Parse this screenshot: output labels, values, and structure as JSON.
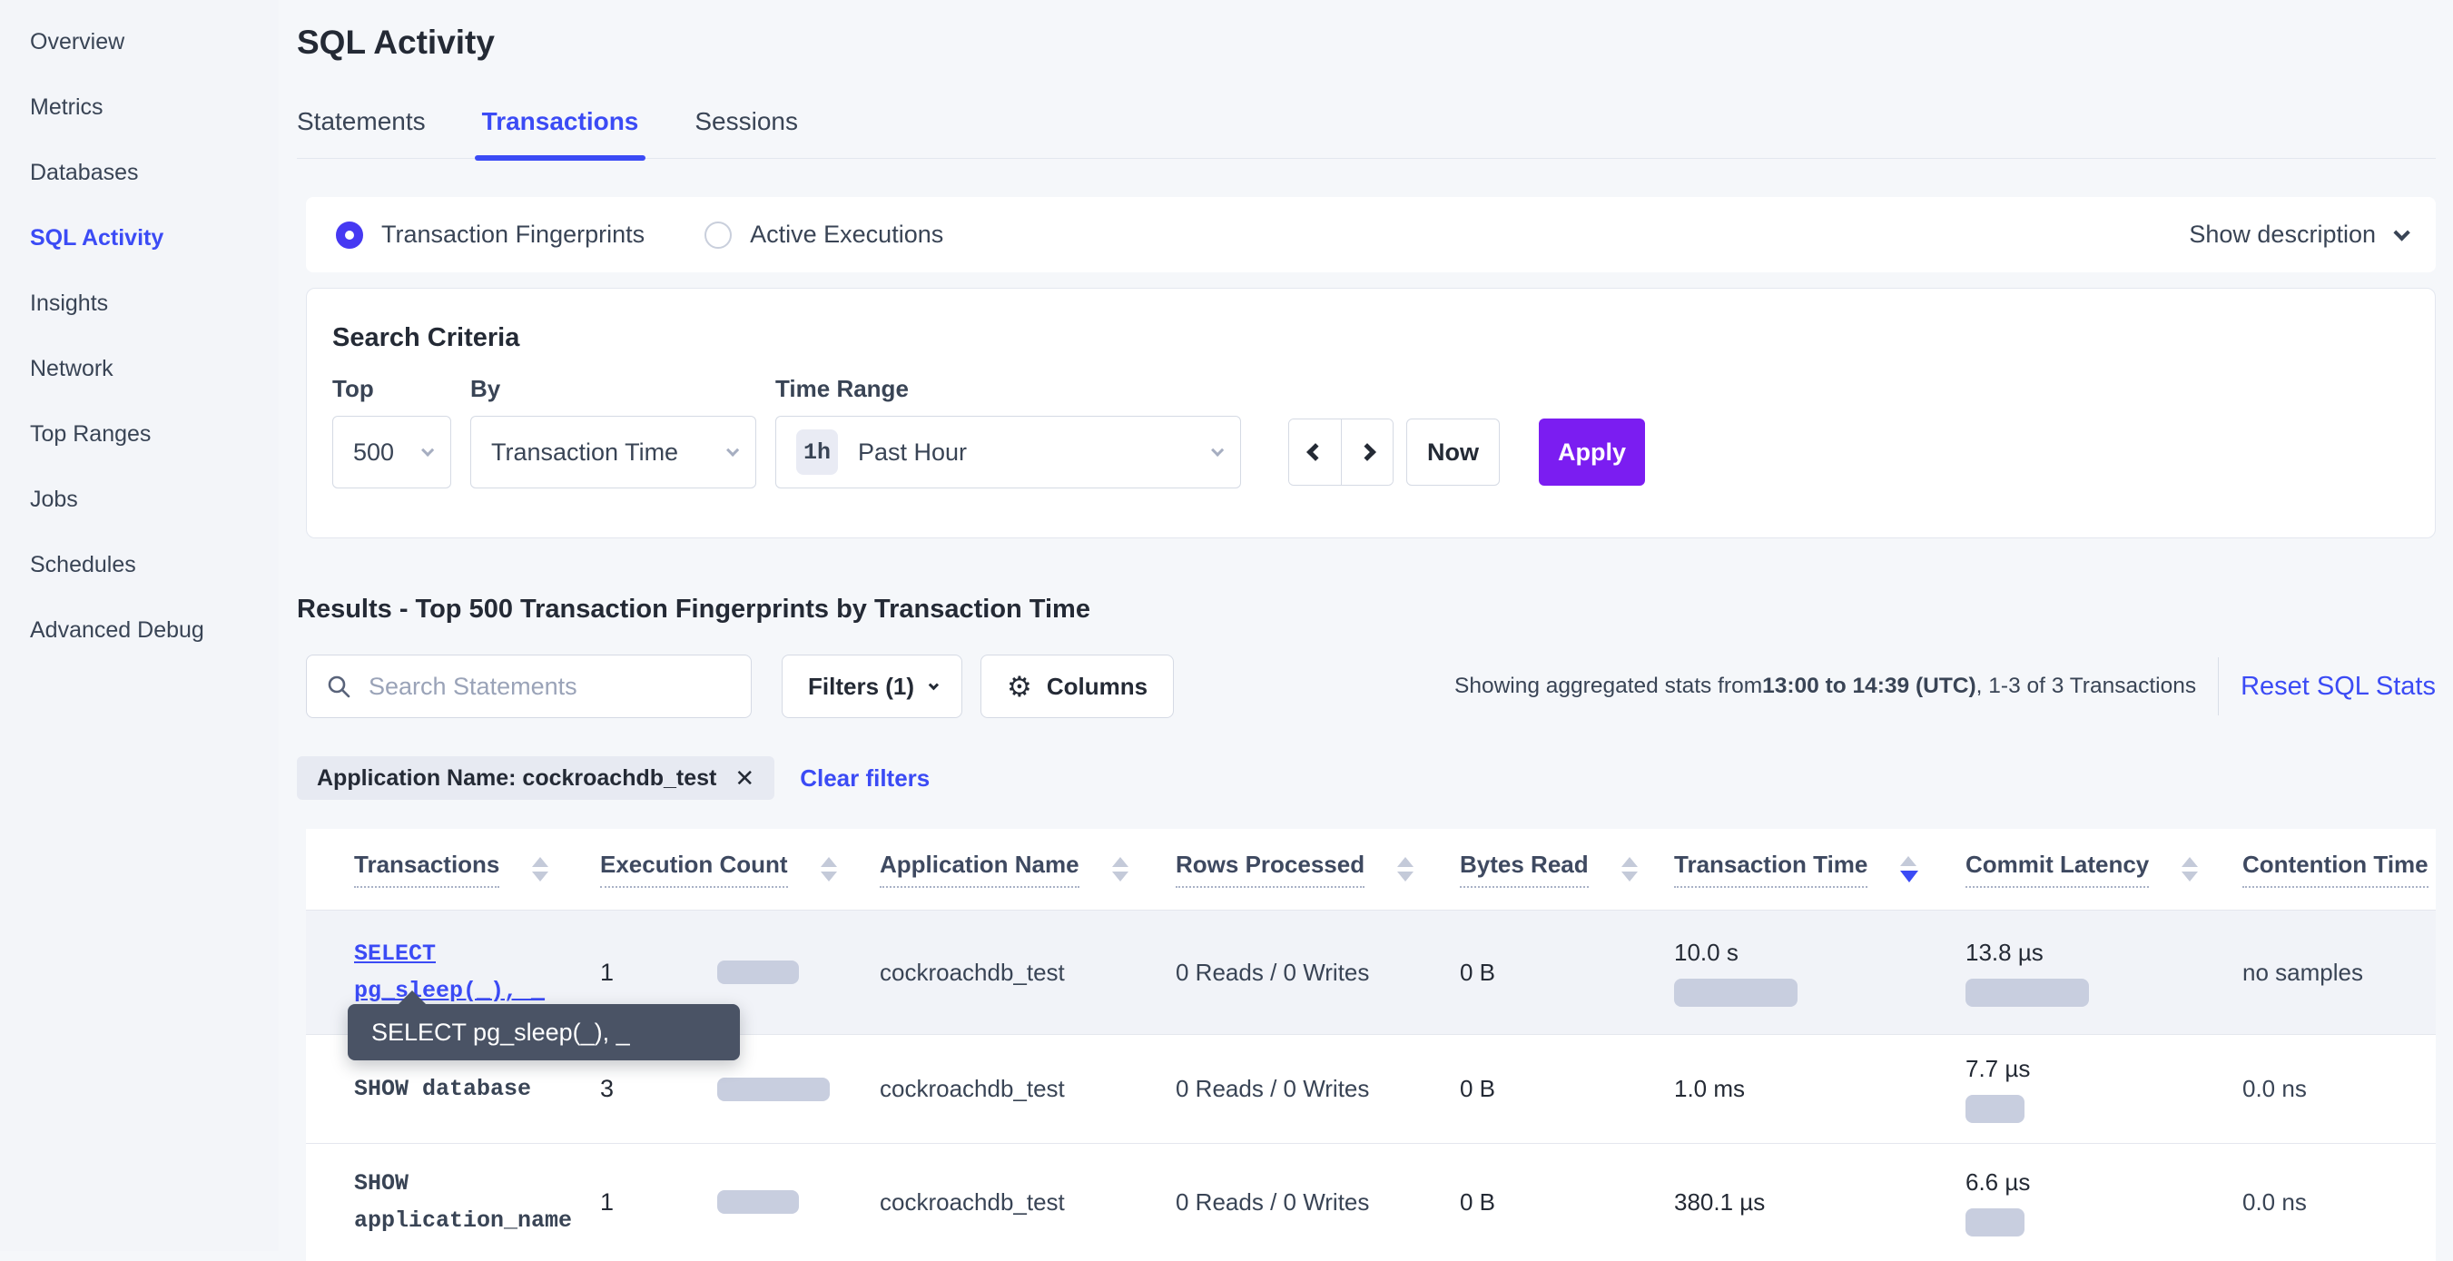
{
  "sidebar": {
    "items": [
      "Overview",
      "Metrics",
      "Databases",
      "SQL Activity",
      "Insights",
      "Network",
      "Top Ranges",
      "Jobs",
      "Schedules",
      "Advanced Debug"
    ],
    "active": "SQL Activity"
  },
  "header": {
    "title": "SQL Activity",
    "tabs": [
      "Statements",
      "Transactions",
      "Sessions"
    ],
    "active_tab": "Transactions"
  },
  "view_toggle": {
    "options": [
      {
        "label": "Transaction Fingerprints",
        "selected": true
      },
      {
        "label": "Active Executions",
        "selected": false
      }
    ],
    "show_description": "Show description"
  },
  "search_criteria": {
    "heading": "Search Criteria",
    "top": {
      "label": "Top",
      "value": "500"
    },
    "by": {
      "label": "By",
      "value": "Transaction Time"
    },
    "time_range": {
      "label": "Time Range",
      "badge": "1h",
      "value": "Past Hour"
    },
    "now_label": "Now",
    "apply_label": "Apply"
  },
  "results": {
    "heading": "Results - Top 500 Transaction Fingerprints by Transaction Time",
    "search_placeholder": "Search Statements",
    "filters_label": "Filters (1)",
    "columns_label": "Columns",
    "stats": {
      "prefix": "Showing aggregated stats from ",
      "bold": "13:00 to 14:39 (UTC)",
      "suffix": ", 1-3 of 3 Transactions"
    },
    "reset_label": "Reset SQL Stats",
    "filter_chip": "Application Name: cockroachdb_test",
    "clear_filters": "Clear filters"
  },
  "table": {
    "columns": [
      {
        "label": "Transactions",
        "sort": "none"
      },
      {
        "label": "Execution Count",
        "sort": "none"
      },
      {
        "label": "Application Name",
        "sort": "none"
      },
      {
        "label": "Rows Processed",
        "sort": "none"
      },
      {
        "label": "Bytes Read",
        "sort": "none"
      },
      {
        "label": "Transaction Time",
        "sort": "desc"
      },
      {
        "label": "Commit Latency",
        "sort": "none"
      },
      {
        "label": "Contention Time",
        "sort": "none"
      }
    ],
    "rows": [
      {
        "transaction": [
          "SELECT",
          "pg_sleep(_), _"
        ],
        "is_link": true,
        "highlighted": true,
        "execution_count": "1",
        "exec_bar": 90,
        "application_name": "cockroachdb_test",
        "rows_processed": "0 Reads / 0 Writes",
        "bytes_read": "0 B",
        "transaction_time": "10.0 s",
        "txn_bar": 136,
        "commit_latency": "13.8 µs",
        "commit_bar": 136,
        "contention_time": "no samples"
      },
      {
        "transaction": [
          "SHOW database"
        ],
        "is_link": false,
        "highlighted": false,
        "execution_count": "3",
        "exec_bar": 124,
        "application_name": "cockroachdb_test",
        "rows_processed": "0 Reads / 0 Writes",
        "bytes_read": "0 B",
        "transaction_time": "1.0 ms",
        "txn_bar": 0,
        "commit_latency": "7.7 µs",
        "commit_bar": 65,
        "contention_time": "0.0 ns"
      },
      {
        "transaction": [
          "SHOW",
          "application_name"
        ],
        "is_link": false,
        "highlighted": false,
        "execution_count": "1",
        "exec_bar": 90,
        "application_name": "cockroachdb_test",
        "rows_processed": "0 Reads / 0 Writes",
        "bytes_read": "0 B",
        "transaction_time": "380.1 µs",
        "txn_bar": 0,
        "commit_latency": "6.6 µs",
        "commit_bar": 65,
        "contention_time": "0.0 ns"
      }
    ]
  },
  "tooltip": {
    "text": "SELECT pg_sleep(_), _"
  },
  "colors": {
    "accent_blue": "#3B4BF5",
    "apply_purple": "#7B1DF1",
    "radio_indigo": "#4639F2",
    "bar_gray": "#C8CEDF",
    "tooltip_slate": "#4A5365"
  }
}
